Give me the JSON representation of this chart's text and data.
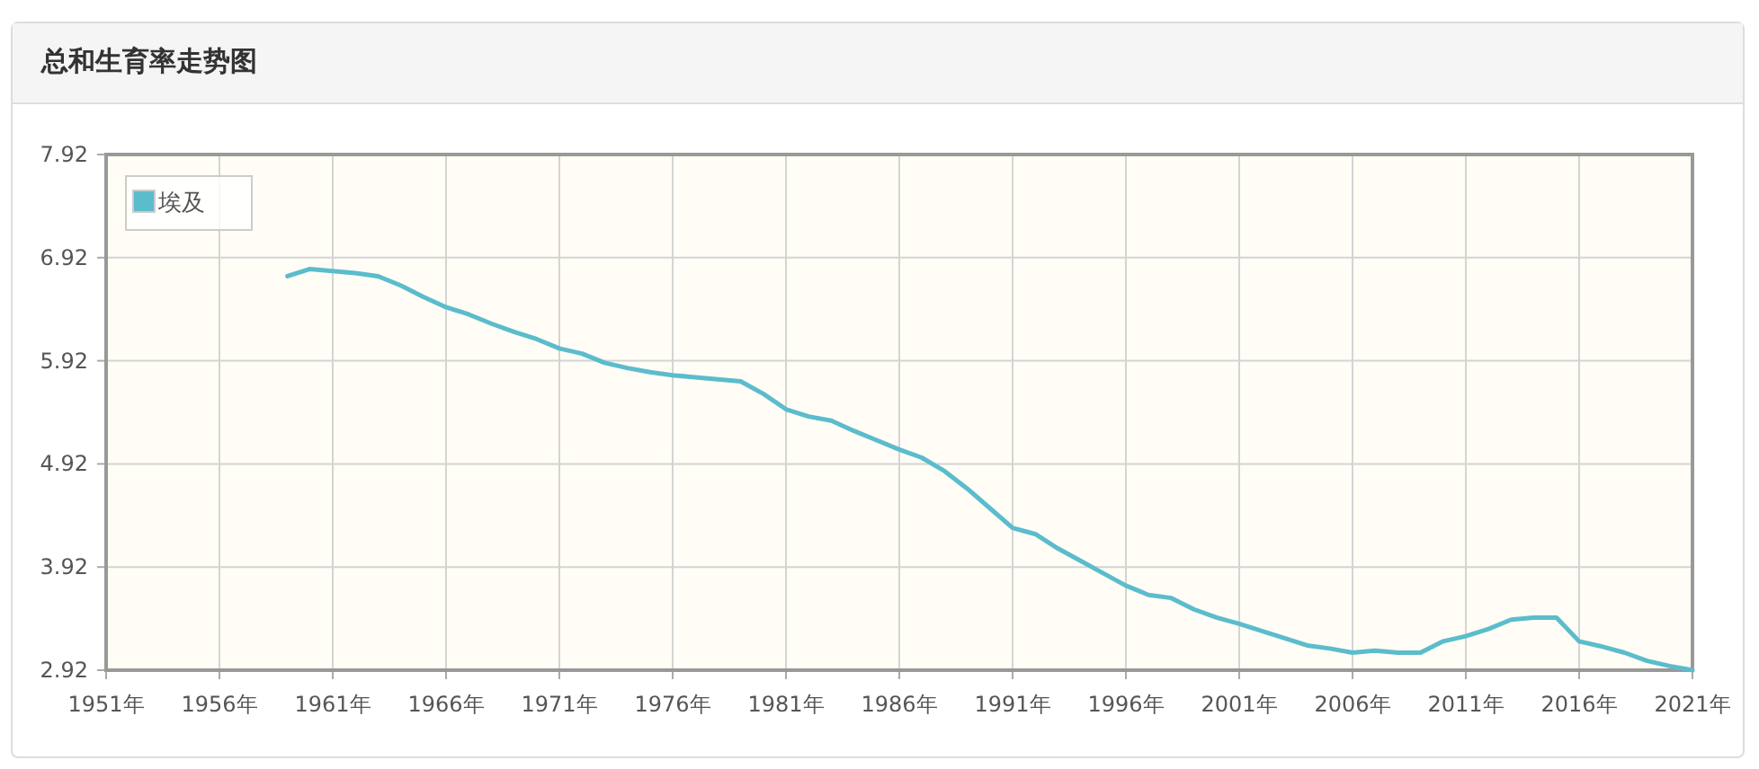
{
  "chart_data": {
    "type": "line",
    "title": "总和生育率走势图",
    "x": [
      1959,
      1960,
      1961,
      1962,
      1963,
      1964,
      1965,
      1966,
      1967,
      1968,
      1969,
      1970,
      1971,
      1972,
      1973,
      1974,
      1975,
      1976,
      1977,
      1978,
      1979,
      1980,
      1981,
      1982,
      1983,
      1984,
      1985,
      1986,
      1987,
      1988,
      1989,
      1990,
      1991,
      1992,
      1993,
      1994,
      1995,
      1996,
      1997,
      1998,
      1999,
      2000,
      2001,
      2002,
      2003,
      2004,
      2005,
      2006,
      2007,
      2008,
      2009,
      2010,
      2011,
      2012,
      2013,
      2014,
      2015,
      2016,
      2017,
      2018,
      2019,
      2020,
      2021
    ],
    "series": [
      {
        "name": "埃及",
        "color": "#5bbccc",
        "values": [
          6.74,
          6.81,
          6.79,
          6.77,
          6.74,
          6.65,
          6.54,
          6.44,
          6.37,
          6.28,
          6.2,
          6.13,
          6.04,
          5.99,
          5.9,
          5.85,
          5.81,
          5.78,
          5.76,
          5.74,
          5.72,
          5.6,
          5.45,
          5.38,
          5.34,
          5.24,
          5.15,
          5.06,
          4.98,
          4.85,
          4.68,
          4.49,
          4.3,
          4.24,
          4.1,
          3.98,
          3.86,
          3.74,
          3.65,
          3.62,
          3.51,
          3.43,
          3.37,
          3.3,
          3.23,
          3.16,
          3.13,
          3.09,
          3.11,
          3.09,
          3.09,
          3.2,
          3.25,
          3.32,
          3.41,
          3.43,
          3.43,
          3.2,
          3.15,
          3.09,
          3.01,
          2.96,
          2.92
        ]
      }
    ],
    "xlim": [
      1951,
      2021
    ],
    "xticks": [
      {
        "value": 1951,
        "label": "1951年"
      },
      {
        "value": 1956,
        "label": "1956年"
      },
      {
        "value": 1961,
        "label": "1961年"
      },
      {
        "value": 1966,
        "label": "1966年"
      },
      {
        "value": 1971,
        "label": "1971年"
      },
      {
        "value": 1976,
        "label": "1976年"
      },
      {
        "value": 1981,
        "label": "1981年"
      },
      {
        "value": 1986,
        "label": "1986年"
      },
      {
        "value": 1991,
        "label": "1991年"
      },
      {
        "value": 1996,
        "label": "1996年"
      },
      {
        "value": 2001,
        "label": "2001年"
      },
      {
        "value": 2006,
        "label": "2006年"
      },
      {
        "value": 2011,
        "label": "2011年"
      },
      {
        "value": 2016,
        "label": "2016年"
      },
      {
        "value": 2021,
        "label": "2021年"
      }
    ],
    "ylim": [
      2.92,
      7.92
    ],
    "yticks": [
      2.92,
      3.92,
      4.92,
      5.92,
      6.92,
      7.92
    ],
    "grid": true,
    "legend": "top left",
    "marker": "none",
    "line_style": "solid"
  }
}
